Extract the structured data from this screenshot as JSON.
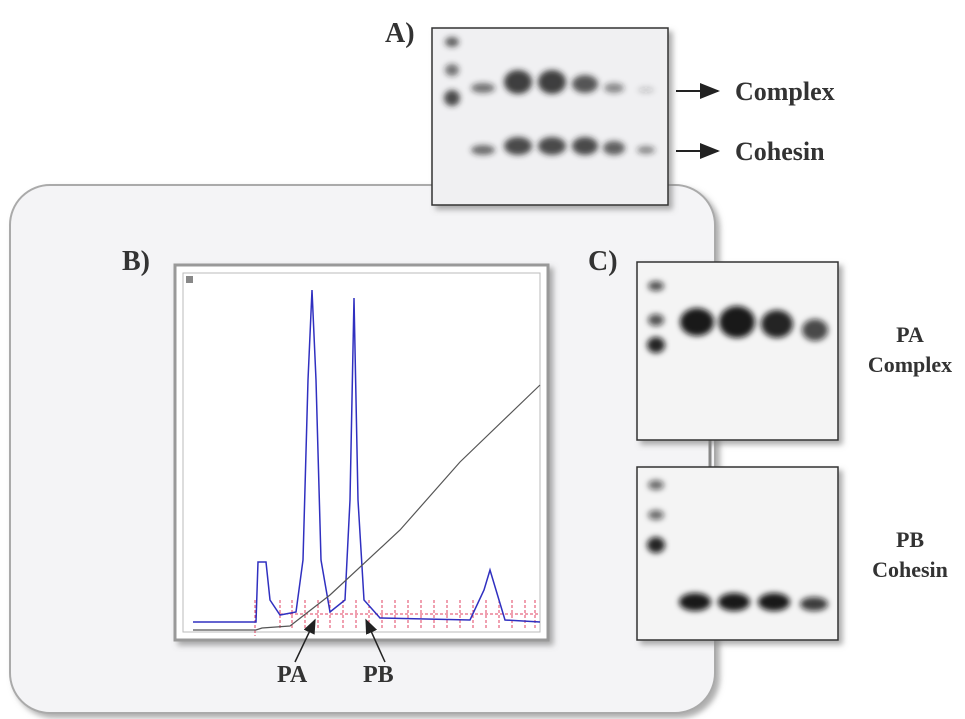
{
  "panels": {
    "a": {
      "label": "A)",
      "bands": [
        "Complex",
        "Cohesin"
      ]
    },
    "b": {
      "label": "B)",
      "peaks": [
        "PA",
        "PB"
      ]
    },
    "c": {
      "label": "C)",
      "gels": [
        [
          "PA",
          "Complex"
        ],
        [
          "PB",
          "Cohesin"
        ]
      ]
    }
  }
}
